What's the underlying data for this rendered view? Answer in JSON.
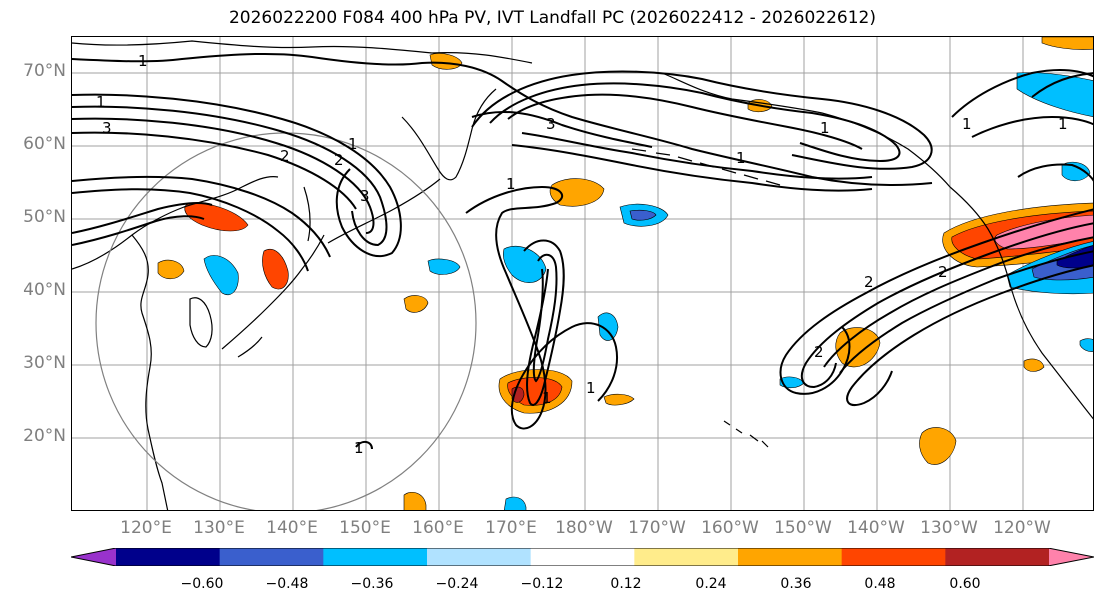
{
  "title": "2026022200 F084 400 hPa PV, IVT Landfall PC (2026022412 - 2026022612)",
  "lat_labels": [
    "70°N",
    "60°N",
    "50°N",
    "40°N",
    "30°N",
    "20°N"
  ],
  "lon_labels": [
    "120°E",
    "130°E",
    "140°E",
    "150°E",
    "160°E",
    "170°E",
    "180°W",
    "170°W",
    "160°W",
    "150°W",
    "140°W",
    "130°W",
    "120°W"
  ],
  "contour_labels": [
    "1",
    "1",
    "3",
    "1",
    "2",
    "2",
    "3",
    "1",
    "1",
    "3",
    "1",
    "1",
    "1",
    "1",
    "2",
    "2",
    "2",
    "1",
    "1"
  ],
  "colorbar": {
    "ticks": [
      "−0.60",
      "−0.48",
      "−0.36",
      "−0.24",
      "−0.12",
      "0.12",
      "0.24",
      "0.36",
      "0.48",
      "0.60"
    ],
    "colors": [
      "#9932cc",
      "#00008b",
      "#3a5fcd",
      "#00bfff",
      "#b0e2ff",
      "#ffffff",
      "#ffec8b",
      "#ffa500",
      "#ff4500",
      "#b22222",
      "#ff82ab"
    ]
  }
}
